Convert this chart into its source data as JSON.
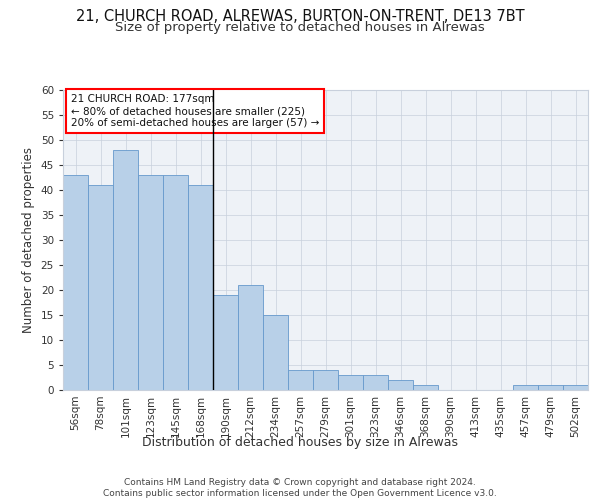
{
  "title_line1": "21, CHURCH ROAD, ALREWAS, BURTON-ON-TRENT, DE13 7BT",
  "title_line2": "Size of property relative to detached houses in Alrewas",
  "xlabel": "Distribution of detached houses by size in Alrewas",
  "ylabel": "Number of detached properties",
  "bar_color": "#b8d0e8",
  "bar_edge_color": "#6699cc",
  "categories": [
    "56sqm",
    "78sqm",
    "101sqm",
    "123sqm",
    "145sqm",
    "168sqm",
    "190sqm",
    "212sqm",
    "234sqm",
    "257sqm",
    "279sqm",
    "301sqm",
    "323sqm",
    "346sqm",
    "368sqm",
    "390sqm",
    "413sqm",
    "435sqm",
    "457sqm",
    "479sqm",
    "502sqm"
  ],
  "values": [
    43,
    41,
    48,
    43,
    43,
    41,
    19,
    21,
    15,
    4,
    4,
    3,
    3,
    2,
    1,
    0,
    0,
    0,
    1,
    1,
    1
  ],
  "ylim": [
    0,
    60
  ],
  "yticks": [
    0,
    5,
    10,
    15,
    20,
    25,
    30,
    35,
    40,
    45,
    50,
    55,
    60
  ],
  "annotation_text": "21 CHURCH ROAD: 177sqm\n← 80% of detached houses are smaller (225)\n20% of semi-detached houses are larger (57) →",
  "vline_x_idx": 6,
  "bg_color": "#eef2f7",
  "grid_color": "#c8d0dc",
  "footer_text": "Contains HM Land Registry data © Crown copyright and database right 2024.\nContains public sector information licensed under the Open Government Licence v3.0.",
  "title_fontsize": 10.5,
  "subtitle_fontsize": 9.5,
  "xlabel_fontsize": 9,
  "ylabel_fontsize": 8.5,
  "tick_fontsize": 7.5,
  "annotation_fontsize": 7.5,
  "footer_fontsize": 6.5
}
